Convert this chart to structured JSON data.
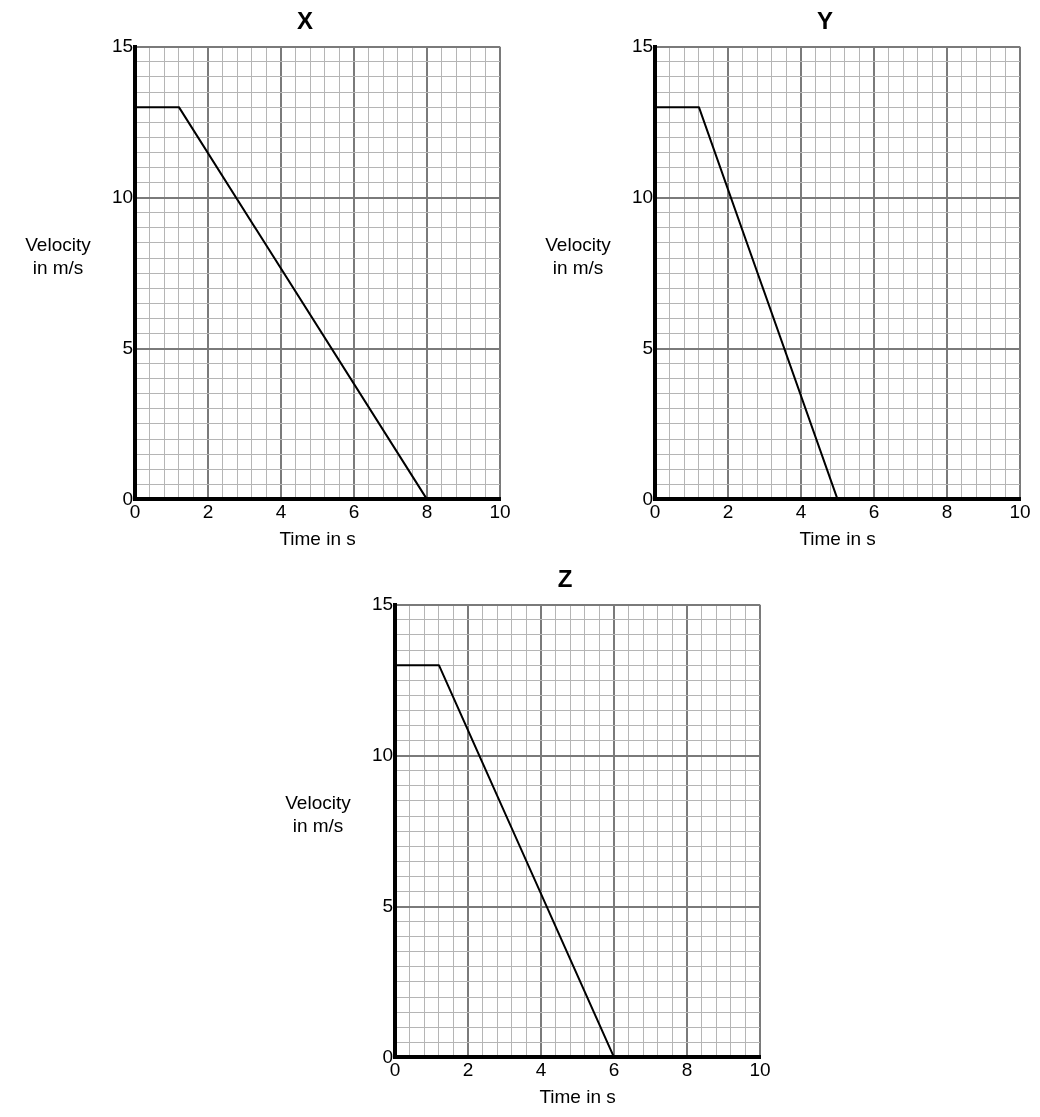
{
  "chart_data": [
    {
      "type": "line",
      "title": "X",
      "xlabel": "Time in s",
      "ylabel": "Velocity in m/s",
      "marker": "none",
      "line_style": "solid",
      "grid": true,
      "series": [
        {
          "color": "#000000",
          "x": [
            0,
            1.2,
            8
          ],
          "values": [
            13,
            13,
            0
          ]
        }
      ],
      "xlim": [
        0,
        10
      ],
      "ylim": [
        0,
        15
      ],
      "xticks": [
        0,
        {
          "value": 0.4,
          "label": null
        },
        {
          "value": 0.8,
          "label": null
        },
        {
          "value": 1.2,
          "label": null
        },
        {
          "value": 1.6,
          "label": null
        },
        2,
        {
          "value": 2.4,
          "label": null
        },
        {
          "value": 2.8,
          "label": null
        },
        {
          "value": 3.2,
          "label": null
        },
        {
          "value": 3.6,
          "label": null
        },
        4,
        {
          "value": 4.4,
          "label": null
        },
        {
          "value": 4.8,
          "label": null
        },
        {
          "value": 5.2,
          "label": null
        },
        {
          "value": 5.6,
          "label": null
        },
        6,
        {
          "value": 6.4,
          "label": null
        },
        {
          "value": 6.8,
          "label": null
        },
        {
          "value": 7.2,
          "label": null
        },
        {
          "value": 7.6,
          "label": null
        },
        8,
        {
          "value": 8.4,
          "label": null
        },
        {
          "value": 8.8,
          "label": null
        },
        {
          "value": 9.2,
          "label": null
        },
        {
          "value": 9.6,
          "label": null
        },
        10
      ],
      "yticks": [
        0,
        {
          "value": 0.5,
          "label": null
        },
        {
          "value": 1,
          "label": null
        },
        {
          "value": 1.5,
          "label": null
        },
        {
          "value": 2,
          "label": null
        },
        {
          "value": 2.5,
          "label": null
        },
        {
          "value": 3,
          "label": null
        },
        {
          "value": 3.5,
          "label": null
        },
        {
          "value": 4,
          "label": null
        },
        {
          "value": 4.5,
          "label": null
        },
        5,
        {
          "value": 5.5,
          "label": null
        },
        {
          "value": 6,
          "label": null
        },
        {
          "value": 6.5,
          "label": null
        },
        {
          "value": 7,
          "label": null
        },
        {
          "value": 7.5,
          "label": null
        },
        {
          "value": 8,
          "label": null
        },
        {
          "value": 8.5,
          "label": null
        },
        {
          "value": 9,
          "label": null
        },
        {
          "value": 9.5,
          "label": null
        },
        10,
        {
          "value": 10.5,
          "label": null
        },
        {
          "value": 11,
          "label": null
        },
        {
          "value": 11.5,
          "label": null
        },
        {
          "value": 12,
          "label": null
        },
        {
          "value": 12.5,
          "label": null
        },
        {
          "value": 13,
          "label": null
        },
        {
          "value": 13.5,
          "label": null
        },
        {
          "value": 14,
          "label": null
        },
        {
          "value": 14.5,
          "label": null
        },
        15
      ]
    },
    {
      "type": "line",
      "title": "Y",
      "xlabel": "Time in s",
      "ylabel": "Velocity in m/s",
      "marker": "none",
      "line_style": "solid",
      "grid": true,
      "series": [
        {
          "color": "#000000",
          "x": [
            0,
            1.2,
            5
          ],
          "values": [
            13,
            13,
            0
          ]
        }
      ],
      "xlim": [
        0,
        10
      ],
      "ylim": [
        0,
        15
      ],
      "xticks": [
        0,
        {
          "value": 0.4,
          "label": null
        },
        {
          "value": 0.8,
          "label": null
        },
        {
          "value": 1.2,
          "label": null
        },
        {
          "value": 1.6,
          "label": null
        },
        2,
        {
          "value": 2.4,
          "label": null
        },
        {
          "value": 2.8,
          "label": null
        },
        {
          "value": 3.2,
          "label": null
        },
        {
          "value": 3.6,
          "label": null
        },
        4,
        {
          "value": 4.4,
          "label": null
        },
        {
          "value": 4.8,
          "label": null
        },
        {
          "value": 5.2,
          "label": null
        },
        {
          "value": 5.6,
          "label": null
        },
        6,
        {
          "value": 6.4,
          "label": null
        },
        {
          "value": 6.8,
          "label": null
        },
        {
          "value": 7.2,
          "label": null
        },
        {
          "value": 7.6,
          "label": null
        },
        8,
        {
          "value": 8.4,
          "label": null
        },
        {
          "value": 8.8,
          "label": null
        },
        {
          "value": 9.2,
          "label": null
        },
        {
          "value": 9.6,
          "label": null
        },
        10
      ],
      "yticks": [
        0,
        {
          "value": 0.5,
          "label": null
        },
        {
          "value": 1,
          "label": null
        },
        {
          "value": 1.5,
          "label": null
        },
        {
          "value": 2,
          "label": null
        },
        {
          "value": 2.5,
          "label": null
        },
        {
          "value": 3,
          "label": null
        },
        {
          "value": 3.5,
          "label": null
        },
        {
          "value": 4,
          "label": null
        },
        {
          "value": 4.5,
          "label": null
        },
        5,
        {
          "value": 5.5,
          "label": null
        },
        {
          "value": 6,
          "label": null
        },
        {
          "value": 6.5,
          "label": null
        },
        {
          "value": 7,
          "label": null
        },
        {
          "value": 7.5,
          "label": null
        },
        {
          "value": 8,
          "label": null
        },
        {
          "value": 8.5,
          "label": null
        },
        {
          "value": 9,
          "label": null
        },
        {
          "value": 9.5,
          "label": null
        },
        10,
        {
          "value": 10.5,
          "label": null
        },
        {
          "value": 11,
          "label": null
        },
        {
          "value": 11.5,
          "label": null
        },
        {
          "value": 12,
          "label": null
        },
        {
          "value": 12.5,
          "label": null
        },
        {
          "value": 13,
          "label": null
        },
        {
          "value": 13.5,
          "label": null
        },
        {
          "value": 14,
          "label": null
        },
        {
          "value": 14.5,
          "label": null
        },
        15
      ]
    },
    {
      "type": "line",
      "title": "Z",
      "xlabel": "Time in s",
      "ylabel": "Velocity in m/s",
      "marker": "none",
      "line_style": "solid",
      "grid": true,
      "series": [
        {
          "color": "#000000",
          "x": [
            0,
            1.2,
            6
          ],
          "values": [
            13,
            13,
            0
          ]
        }
      ],
      "xlim": [
        0,
        10
      ],
      "ylim": [
        0,
        15
      ],
      "xticks": [
        0,
        {
          "value": 0.4,
          "label": null
        },
        {
          "value": 0.8,
          "label": null
        },
        {
          "value": 1.2,
          "label": null
        },
        {
          "value": 1.6,
          "label": null
        },
        2,
        {
          "value": 2.4,
          "label": null
        },
        {
          "value": 2.8,
          "label": null
        },
        {
          "value": 3.2,
          "label": null
        },
        {
          "value": 3.6,
          "label": null
        },
        4,
        {
          "value": 4.4,
          "label": null
        },
        {
          "value": 4.8,
          "label": null
        },
        {
          "value": 5.2,
          "label": null
        },
        {
          "value": 5.6,
          "label": null
        },
        6,
        {
          "value": 6.4,
          "label": null
        },
        {
          "value": 6.8,
          "label": null
        },
        {
          "value": 7.2,
          "label": null
        },
        {
          "value": 7.6,
          "label": null
        },
        8,
        {
          "value": 8.4,
          "label": null
        },
        {
          "value": 8.8,
          "label": null
        },
        {
          "value": 9.2,
          "label": null
        },
        {
          "value": 9.6,
          "label": null
        },
        10
      ],
      "yticks": [
        0,
        {
          "value": 0.5,
          "label": null
        },
        {
          "value": 1,
          "label": null
        },
        {
          "value": 1.5,
          "label": null
        },
        {
          "value": 2,
          "label": null
        },
        {
          "value": 2.5,
          "label": null
        },
        {
          "value": 3,
          "label": null
        },
        {
          "value": 3.5,
          "label": null
        },
        {
          "value": 4,
          "label": null
        },
        {
          "value": 4.5,
          "label": null
        },
        5,
        {
          "value": 5.5,
          "label": null
        },
        {
          "value": 6,
          "label": null
        },
        {
          "value": 6.5,
          "label": null
        },
        {
          "value": 7,
          "label": null
        },
        {
          "value": 7.5,
          "label": null
        },
        {
          "value": 8,
          "label": null
        },
        {
          "value": 8.5,
          "label": null
        },
        {
          "value": 9,
          "label": null
        },
        {
          "value": 9.5,
          "label": null
        },
        10,
        {
          "value": 10.5,
          "label": null
        },
        {
          "value": 11,
          "label": null
        },
        {
          "value": 11.5,
          "label": null
        },
        {
          "value": 12,
          "label": null
        },
        {
          "value": 12.5,
          "label": null
        },
        {
          "value": 13,
          "label": null
        },
        {
          "value": 13.5,
          "label": null
        },
        {
          "value": 14,
          "label": null
        },
        {
          "value": 14.5,
          "label": null
        },
        15
      ]
    }
  ]
}
